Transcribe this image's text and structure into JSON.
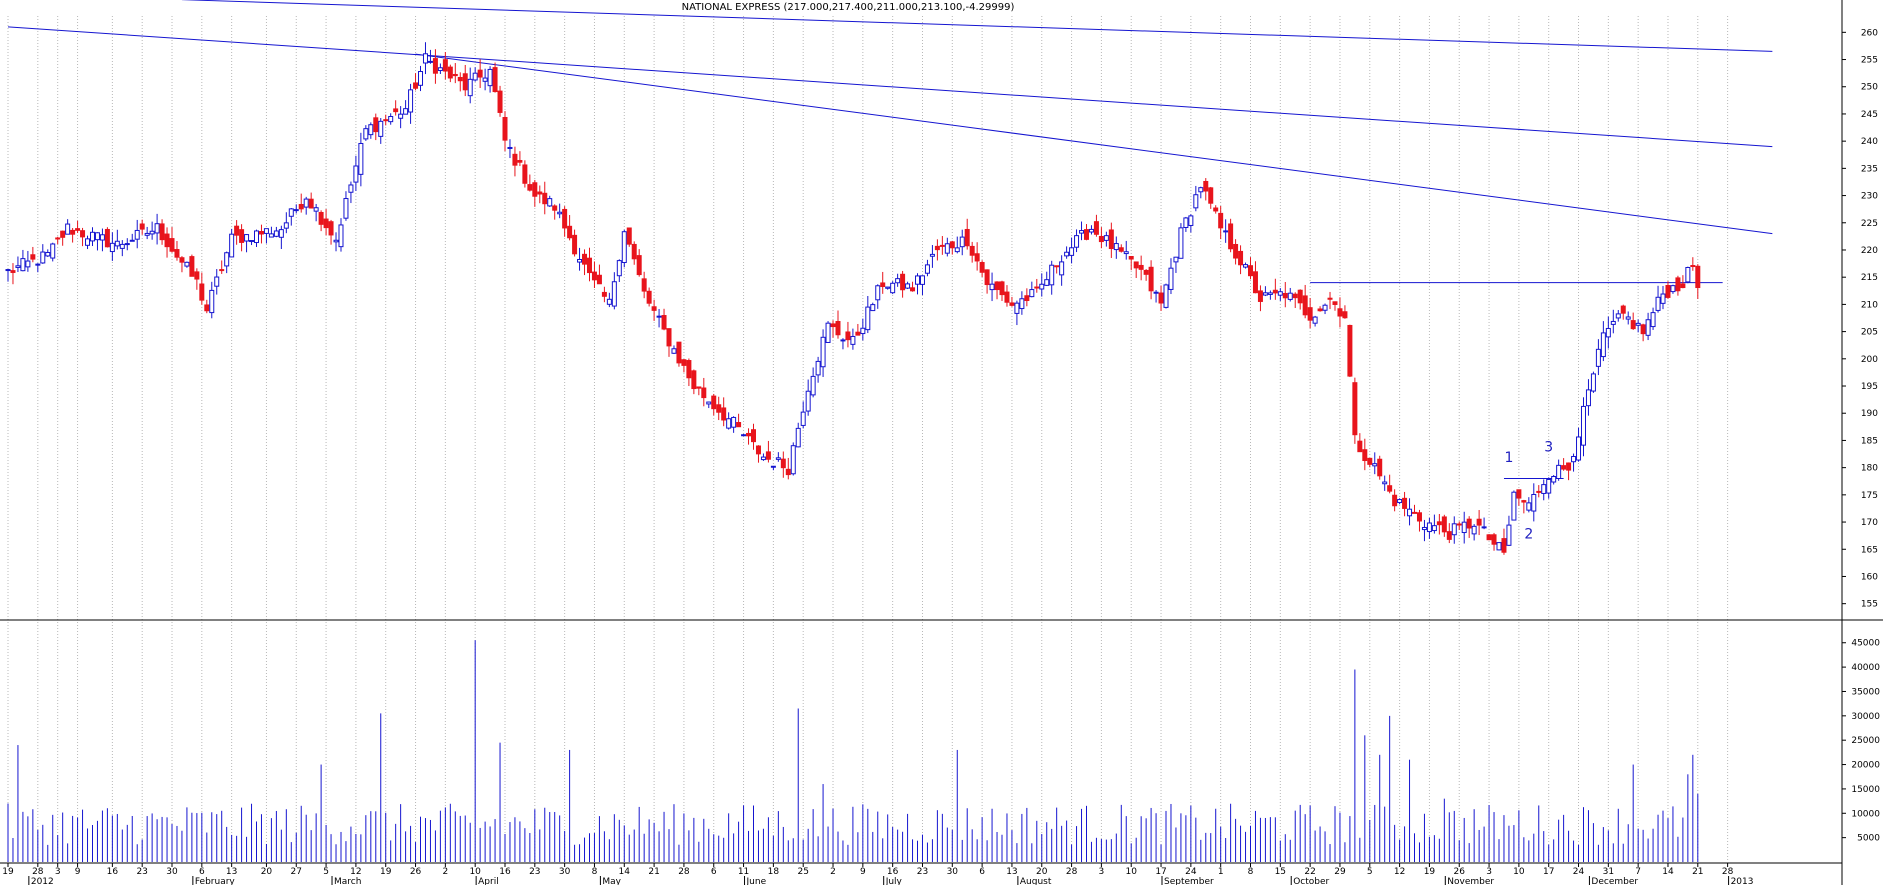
{
  "chart_title": "NATIONAL EXPRESS (217.000,217.400,211.000,213.100,-4.29999)",
  "chart_data": [
    {
      "type": "candlestick",
      "title": "NATIONAL EXPRESS (217.000,217.400,211.000,213.100,-4.29999)",
      "ylim": [
        152,
        263
      ],
      "y_ticks": [
        155,
        160,
        165,
        170,
        175,
        180,
        185,
        190,
        195,
        200,
        205,
        210,
        215,
        220,
        225,
        230,
        235,
        240,
        245,
        250,
        255,
        260
      ],
      "grid": "vertical dotted",
      "up_color": "#ffffff",
      "down_color": "#e8141c",
      "outline_color": "#2020d0",
      "last_ohlc": {
        "open": 217.0,
        "high": 217.4,
        "low": 211.0,
        "close": 213.1,
        "change": -4.29999
      },
      "anchors": [
        {
          "idx": 0,
          "close": 216
        },
        {
          "idx": 8,
          "close": 219
        },
        {
          "idx": 12,
          "close": 224
        },
        {
          "idx": 22,
          "close": 221
        },
        {
          "idx": 30,
          "close": 224
        },
        {
          "idx": 38,
          "close": 214
        },
        {
          "idx": 40,
          "close": 209
        },
        {
          "idx": 45,
          "close": 222
        },
        {
          "idx": 55,
          "close": 224
        },
        {
          "idx": 60,
          "close": 230
        },
        {
          "idx": 66,
          "close": 222
        },
        {
          "idx": 72,
          "close": 242
        },
        {
          "idx": 80,
          "close": 246
        },
        {
          "idx": 84,
          "close": 255
        },
        {
          "idx": 92,
          "close": 250
        },
        {
          "idx": 97,
          "close": 253
        },
        {
          "idx": 100,
          "close": 240
        },
        {
          "idx": 106,
          "close": 230
        },
        {
          "idx": 110,
          "close": 228
        },
        {
          "idx": 117,
          "close": 215
        },
        {
          "idx": 121,
          "close": 210
        },
        {
          "idx": 124,
          "close": 224
        },
        {
          "idx": 128,
          "close": 212
        },
        {
          "idx": 132,
          "close": 205
        },
        {
          "idx": 138,
          "close": 195
        },
        {
          "idx": 146,
          "close": 188
        },
        {
          "idx": 152,
          "close": 182
        },
        {
          "idx": 157,
          "close": 180
        },
        {
          "idx": 161,
          "close": 195
        },
        {
          "idx": 165,
          "close": 206
        },
        {
          "idx": 170,
          "close": 203
        },
        {
          "idx": 176,
          "close": 214
        },
        {
          "idx": 182,
          "close": 213
        },
        {
          "idx": 187,
          "close": 220
        },
        {
          "idx": 193,
          "close": 222
        },
        {
          "idx": 197,
          "close": 214
        },
        {
          "idx": 202,
          "close": 210
        },
        {
          "idx": 207,
          "close": 212
        },
        {
          "idx": 212,
          "close": 219
        },
        {
          "idx": 218,
          "close": 224
        },
        {
          "idx": 223,
          "close": 220
        },
        {
          "idx": 228,
          "close": 216
        },
        {
          "idx": 232,
          "close": 210
        },
        {
          "idx": 236,
          "close": 223
        },
        {
          "idx": 240,
          "close": 232
        },
        {
          "idx": 244,
          "close": 224
        },
        {
          "idx": 248,
          "close": 218
        },
        {
          "idx": 252,
          "close": 211
        },
        {
          "idx": 257,
          "close": 212
        },
        {
          "idx": 262,
          "close": 208
        },
        {
          "idx": 266,
          "close": 211
        },
        {
          "idx": 269,
          "close": 208
        },
        {
          "idx": 271,
          "close": 185
        },
        {
          "idx": 275,
          "close": 180
        },
        {
          "idx": 279,
          "close": 174
        },
        {
          "idx": 285,
          "close": 170
        },
        {
          "idx": 290,
          "close": 168
        },
        {
          "idx": 295,
          "close": 170
        },
        {
          "idx": 299,
          "close": 166
        },
        {
          "idx": 301,
          "close": 164
        },
        {
          "idx": 303,
          "close": 175
        },
        {
          "idx": 306,
          "close": 173
        },
        {
          "idx": 310,
          "close": 179
        },
        {
          "idx": 314,
          "close": 180
        },
        {
          "idx": 317,
          "close": 190
        },
        {
          "idx": 321,
          "close": 204
        },
        {
          "idx": 325,
          "close": 208
        },
        {
          "idx": 329,
          "close": 205
        },
        {
          "idx": 333,
          "close": 212
        },
        {
          "idx": 337,
          "close": 214
        },
        {
          "idx": 339,
          "close": 217
        },
        {
          "idx": 340,
          "close": 213.1
        }
      ],
      "volume": {
        "ylim": [
          0,
          47000
        ],
        "y_ticks": [
          5000,
          10000,
          15000,
          20000,
          25000,
          30000,
          35000,
          40000,
          45000
        ],
        "spikes": [
          {
            "idx": 2,
            "value": 24000
          },
          {
            "idx": 63,
            "value": 20000
          },
          {
            "idx": 75,
            "value": 30500
          },
          {
            "idx": 94,
            "value": 45500
          },
          {
            "idx": 99,
            "value": 24500
          },
          {
            "idx": 113,
            "value": 23000
          },
          {
            "idx": 159,
            "value": 31500
          },
          {
            "idx": 164,
            "value": 16000
          },
          {
            "idx": 191,
            "value": 23000
          },
          {
            "idx": 271,
            "value": 39500
          },
          {
            "idx": 273,
            "value": 26000
          },
          {
            "idx": 276,
            "value": 22000
          },
          {
            "idx": 278,
            "value": 30000
          },
          {
            "idx": 282,
            "value": 21000
          },
          {
            "idx": 289,
            "value": 13000
          },
          {
            "idx": 327,
            "value": 20000
          },
          {
            "idx": 338,
            "value": 18000
          },
          {
            "idx": 339,
            "value": 22000
          },
          {
            "idx": 340,
            "value": 14000
          }
        ]
      }
    }
  ],
  "x_axis": {
    "day_ticks": [
      {
        "idx": 0,
        "label": "19"
      },
      {
        "idx": 6,
        "label": "28"
      },
      {
        "idx": 10,
        "label": "3"
      },
      {
        "idx": 14,
        "label": "9"
      },
      {
        "idx": 21,
        "label": "16"
      },
      {
        "idx": 27,
        "label": "23"
      },
      {
        "idx": 33,
        "label": "30"
      },
      {
        "idx": 39,
        "label": "6"
      },
      {
        "idx": 45,
        "label": "13"
      },
      {
        "idx": 52,
        "label": "20"
      },
      {
        "idx": 58,
        "label": "27"
      },
      {
        "idx": 64,
        "label": "5"
      },
      {
        "idx": 70,
        "label": "12"
      },
      {
        "idx": 76,
        "label": "19"
      },
      {
        "idx": 82,
        "label": "26"
      },
      {
        "idx": 88,
        "label": "2"
      },
      {
        "idx": 94,
        "label": "10"
      },
      {
        "idx": 100,
        "label": "16"
      },
      {
        "idx": 106,
        "label": "23"
      },
      {
        "idx": 112,
        "label": "30"
      },
      {
        "idx": 118,
        "label": "8"
      },
      {
        "idx": 124,
        "label": "14"
      },
      {
        "idx": 130,
        "label": "21"
      },
      {
        "idx": 136,
        "label": "28"
      },
      {
        "idx": 142,
        "label": "6"
      },
      {
        "idx": 148,
        "label": "11"
      },
      {
        "idx": 154,
        "label": "18"
      },
      {
        "idx": 160,
        "label": "25"
      },
      {
        "idx": 166,
        "label": "2"
      },
      {
        "idx": 172,
        "label": "9"
      },
      {
        "idx": 178,
        "label": "16"
      },
      {
        "idx": 184,
        "label": "23"
      },
      {
        "idx": 190,
        "label": "30"
      },
      {
        "idx": 196,
        "label": "6"
      },
      {
        "idx": 202,
        "label": "13"
      },
      {
        "idx": 208,
        "label": "20"
      },
      {
        "idx": 214,
        "label": "28"
      },
      {
        "idx": 220,
        "label": "3"
      },
      {
        "idx": 226,
        "label": "10"
      },
      {
        "idx": 232,
        "label": "17"
      },
      {
        "idx": 238,
        "label": "24"
      },
      {
        "idx": 244,
        "label": "1"
      },
      {
        "idx": 250,
        "label": "8"
      },
      {
        "idx": 256,
        "label": "15"
      },
      {
        "idx": 262,
        "label": "22"
      },
      {
        "idx": 268,
        "label": "29"
      },
      {
        "idx": 274,
        "label": "5"
      },
      {
        "idx": 280,
        "label": "12"
      },
      {
        "idx": 286,
        "label": "19"
      },
      {
        "idx": 292,
        "label": "26"
      },
      {
        "idx": 298,
        "label": "3"
      },
      {
        "idx": 304,
        "label": "10"
      },
      {
        "idx": 310,
        "label": "17"
      },
      {
        "idx": 316,
        "label": "24"
      },
      {
        "idx": 322,
        "label": "31"
      },
      {
        "idx": 328,
        "label": "7"
      },
      {
        "idx": 334,
        "label": "14"
      },
      {
        "idx": 340,
        "label": "21"
      },
      {
        "idx": 346,
        "label": "28"
      }
    ],
    "month_labels": [
      {
        "idx": 5,
        "label": "2012"
      },
      {
        "idx": 38,
        "label": "February"
      },
      {
        "idx": 66,
        "label": "March"
      },
      {
        "idx": 95,
        "label": "April"
      },
      {
        "idx": 120,
        "label": "May"
      },
      {
        "idx": 149,
        "label": "June"
      },
      {
        "idx": 177,
        "label": "July"
      },
      {
        "idx": 204,
        "label": "August"
      },
      {
        "idx": 233,
        "label": "September"
      },
      {
        "idx": 259,
        "label": "October"
      },
      {
        "idx": 290,
        "label": "November"
      },
      {
        "idx": 319,
        "label": "December"
      },
      {
        "idx": 347,
        "label": "2013"
      }
    ]
  },
  "annotations": [
    {
      "label": "1",
      "idx": 302,
      "price": 181
    },
    {
      "label": "2",
      "idx": 306,
      "price": 167
    },
    {
      "label": "3",
      "idx": 310,
      "price": 183
    }
  ],
  "trendlines": [
    {
      "from": {
        "idx": 35,
        "price": 266
      },
      "to": {
        "idx": 355,
        "price": 256.5
      }
    },
    {
      "from": {
        "idx": 0,
        "price": 261
      },
      "to": {
        "idx": 355,
        "price": 239
      }
    },
    {
      "from": {
        "idx": 82,
        "price": 256
      },
      "to": {
        "idx": 355,
        "price": 223
      }
    },
    {
      "from": {
        "idx": 262,
        "price": 214
      },
      "to": {
        "idx": 345,
        "price": 214
      }
    },
    {
      "from": {
        "idx": 301,
        "price": 178
      },
      "to": {
        "idx": 313,
        "price": 178
      }
    }
  ],
  "colors": {
    "line_color": "#1515d0",
    "grid_color": "#b8b8b8",
    "divider": "#000000"
  }
}
